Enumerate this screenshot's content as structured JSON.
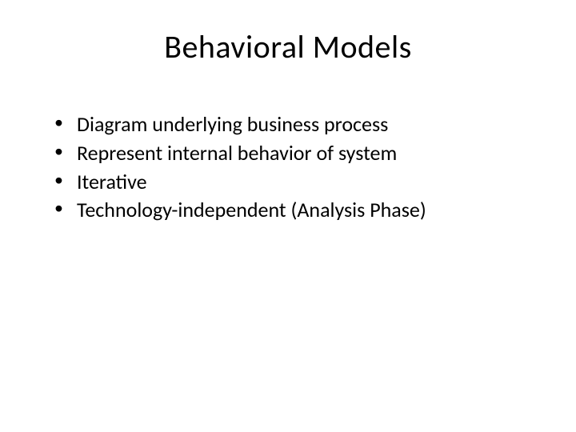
{
  "slide": {
    "title": "Behavioral Models",
    "bullets": [
      "Diagram underlying business process",
      "Represent internal behavior of system",
      "Iterative",
      "Technology-independent (Analysis Phase)"
    ],
    "styling": {
      "background_color": "#ffffff",
      "text_color": "#000000",
      "title_fontsize": 40,
      "title_fontweight": 400,
      "bullet_fontsize": 26,
      "font_family": "Calibri",
      "slide_width": 720,
      "slide_height": 540
    }
  }
}
